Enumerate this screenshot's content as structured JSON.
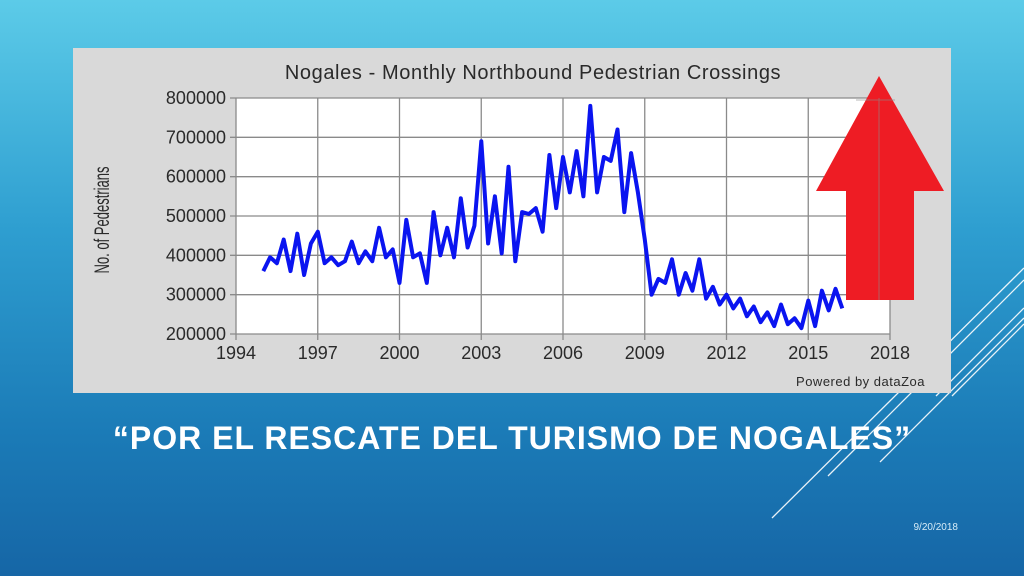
{
  "slide": {
    "title": "“POR EL RESCATE DEL TURISMO DE NOGALES”",
    "date": "9/20/2018"
  },
  "colors": {
    "line": "#0a14f0",
    "arrow": "#ee1c24",
    "grid": "#8a8a8a",
    "plot_bg": "#ffffff",
    "panel_bg": "#d9d9d9"
  },
  "chart_data": {
    "type": "line",
    "title": "Nogales - Monthly Northbound Pedestrian Crossings",
    "xlabel": "",
    "ylabel": "No. of Pedestrians",
    "credit": "Powered by dataZoa",
    "xlim": [
      1994,
      2018
    ],
    "ylim": [
      200000,
      800000
    ],
    "x_ticks": [
      "1994",
      "1997",
      "2000",
      "2003",
      "2006",
      "2009",
      "2012",
      "2015",
      "2018"
    ],
    "y_ticks": [
      "800000",
      "700000",
      "600000",
      "500000",
      "400000",
      "300000",
      "200000"
    ],
    "grid": true,
    "annotation": "red upward arrow",
    "series": [
      {
        "x": [
          1995.0,
          1995.25,
          1995.5,
          1995.75,
          1996.0,
          1996.25,
          1996.5,
          1996.75,
          1997.0,
          1997.25,
          1997.5,
          1997.75,
          1998.0,
          1998.25,
          1998.5,
          1998.75,
          1999.0,
          1999.25,
          1999.5,
          1999.75,
          2000.0,
          2000.25,
          2000.5,
          2000.75,
          2001.0,
          2001.25,
          2001.5,
          2001.75,
          2002.0,
          2002.25,
          2002.5,
          2002.75,
          2003.0,
          2003.25,
          2003.5,
          2003.75,
          2004.0,
          2004.25,
          2004.5,
          2004.75,
          2005.0,
          2005.25,
          2005.5,
          2005.75,
          2006.0,
          2006.25,
          2006.5,
          2006.75,
          2007.0,
          2007.25,
          2007.5,
          2007.75,
          2008.0,
          2008.25,
          2008.5,
          2008.75,
          2009.0,
          2009.25,
          2009.5,
          2009.75,
          2010.0,
          2010.25,
          2010.5,
          2010.75,
          2011.0,
          2011.25,
          2011.5,
          2011.75,
          2012.0,
          2012.25,
          2012.5,
          2012.75,
          2013.0,
          2013.25,
          2013.5,
          2013.75,
          2014.0,
          2014.25,
          2014.5,
          2014.75,
          2015.0,
          2015.25,
          2015.5,
          2015.75,
          2016.0,
          2016.25
        ],
        "y": [
          360000,
          395000,
          380000,
          440000,
          360000,
          455000,
          350000,
          430000,
          460000,
          380000,
          395000,
          375000,
          385000,
          435000,
          380000,
          410000,
          385000,
          470000,
          395000,
          415000,
          330000,
          490000,
          395000,
          405000,
          330000,
          510000,
          400000,
          470000,
          395000,
          545000,
          420000,
          475000,
          690000,
          430000,
          550000,
          405000,
          625000,
          385000,
          510000,
          505000,
          520000,
          460000,
          655000,
          520000,
          650000,
          560000,
          665000,
          550000,
          780000,
          560000,
          650000,
          640000,
          720000,
          510000,
          660000,
          560000,
          440000,
          300000,
          340000,
          330000,
          390000,
          300000,
          355000,
          310000,
          390000,
          290000,
          320000,
          275000,
          300000,
          265000,
          290000,
          245000,
          270000,
          230000,
          255000,
          220000,
          275000,
          225000,
          240000,
          215000,
          285000,
          220000,
          310000,
          260000,
          315000,
          265000
        ]
      }
    ]
  }
}
